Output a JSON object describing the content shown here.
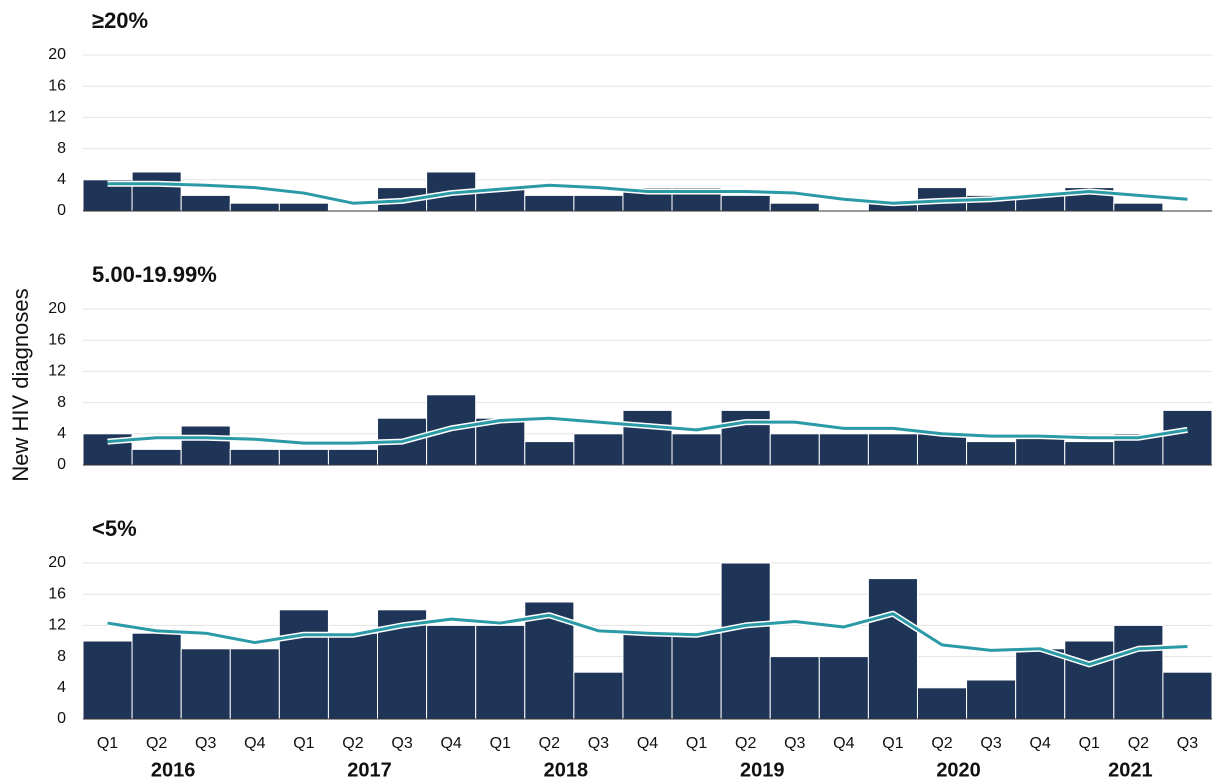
{
  "y_label": "New HIV diagnoses",
  "x_axis": {
    "categories": [
      "Q1",
      "Q2",
      "Q3",
      "Q4",
      "Q1",
      "Q2",
      "Q3",
      "Q4",
      "Q1",
      "Q2",
      "Q3",
      "Q4",
      "Q1",
      "Q2",
      "Q3",
      "Q4",
      "Q1",
      "Q2",
      "Q3",
      "Q4",
      "Q1",
      "Q2",
      "Q3"
    ],
    "years": [
      "2016",
      "2017",
      "2018",
      "2019",
      "2020",
      "2021"
    ]
  },
  "chart_data": [
    {
      "type": "bar_line",
      "title": "≥20%",
      "color": "#1f3557",
      "line_color": "#2a9aa6",
      "ylim": [
        0,
        20
      ],
      "yticks": [
        0,
        4,
        8,
        12,
        16,
        20
      ],
      "grid": true,
      "values": [
        4,
        5,
        2,
        1,
        1,
        0,
        3,
        5,
        3,
        2,
        2,
        3,
        3,
        2,
        1,
        0,
        1,
        3,
        2,
        2,
        3,
        1,
        0
      ],
      "trend": [
        3.5,
        3.5,
        3.3,
        3.0,
        2.3,
        1.0,
        1.3,
        2.3,
        2.8,
        3.3,
        3.0,
        2.5,
        2.5,
        2.5,
        2.3,
        1.5,
        1.0,
        1.3,
        1.5,
        2.0,
        2.5,
        2.0,
        1.5
      ]
    },
    {
      "type": "bar_line",
      "title": "5.00-19.99%",
      "color": "#1f3557",
      "line_color": "#2a9aa6",
      "ylim": [
        0,
        20
      ],
      "yticks": [
        0,
        4,
        8,
        12,
        16,
        20
      ],
      "grid": true,
      "values": [
        4,
        2,
        5,
        2,
        2,
        2,
        6,
        9,
        6,
        3,
        4,
        7,
        4,
        7,
        4,
        4,
        4,
        4,
        3,
        4,
        3,
        4,
        7
      ],
      "trend": [
        3.0,
        3.5,
        3.5,
        3.3,
        2.8,
        2.8,
        3.0,
        4.7,
        5.7,
        6.0,
        5.5,
        5.0,
        4.5,
        5.5,
        5.5,
        4.7,
        4.7,
        4.0,
        3.7,
        3.7,
        3.5,
        3.5,
        4.5
      ]
    },
    {
      "type": "bar_line",
      "title": "<5%",
      "color": "#1f3557",
      "line_color": "#2a9aa6",
      "ylim": [
        0,
        20
      ],
      "yticks": [
        0,
        4,
        8,
        12,
        16,
        20
      ],
      "grid": true,
      "values": [
        10,
        11,
        9,
        9,
        14,
        11,
        14,
        12,
        12,
        15,
        6,
        11,
        11,
        20,
        8,
        8,
        18,
        4,
        5,
        9,
        10,
        12,
        6
      ],
      "trend": [
        12.3,
        11.3,
        11.0,
        9.8,
        10.8,
        10.8,
        12.0,
        12.8,
        12.3,
        13.3,
        11.3,
        11.0,
        10.8,
        12.0,
        12.5,
        11.8,
        13.5,
        9.5,
        8.8,
        9.0,
        7.0,
        9.0,
        9.3
      ]
    }
  ]
}
